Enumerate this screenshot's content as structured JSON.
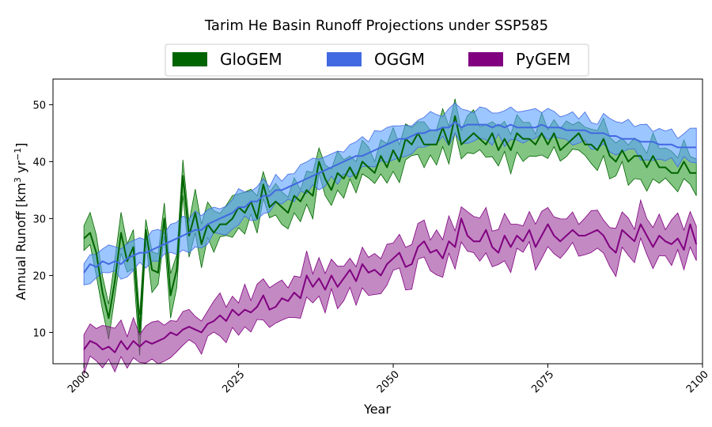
{
  "chart_data": {
    "type": "area",
    "title": "Tarim He Basin Runoff Projections under SSP585",
    "xlabel": "Year",
    "ylabel": {
      "prefix": "Annual Runoff [km",
      "sup1": "3",
      "mid": " yr",
      "sup2": "−1",
      "suffix": "]"
    },
    "xlim": [
      1995,
      2100
    ],
    "ylim": [
      4.5,
      54.5
    ],
    "xticks": [
      2000,
      2025,
      2050,
      2075,
      2100
    ],
    "yticks": [
      10,
      20,
      30,
      40,
      50
    ],
    "legend_placement": "top-center, above plot",
    "series": [
      {
        "name": "GloGEM",
        "color": "#006400",
        "band_color": "#2e9e2e",
        "band_alpha": 0.6,
        "mean_points": [
          [
            2000,
            26.5
          ],
          [
            2001,
            27.5
          ],
          [
            2002,
            24
          ],
          [
            2003,
            17
          ],
          [
            2004,
            12.5
          ],
          [
            2005,
            19
          ],
          [
            2006,
            27.5
          ],
          [
            2007,
            22.5
          ],
          [
            2008,
            25
          ],
          [
            2009,
            10
          ],
          [
            2010,
            28
          ],
          [
            2011,
            21
          ],
          [
            2012,
            20.5
          ],
          [
            2013,
            30
          ],
          [
            2014,
            16.5
          ],
          [
            2015,
            21
          ],
          [
            2016,
            37.5
          ],
          [
            2017,
            27
          ],
          [
            2018,
            31
          ],
          [
            2019,
            25.5
          ],
          [
            2020,
            29
          ],
          [
            2021,
            27.5
          ],
          [
            2022,
            29
          ],
          [
            2023,
            29
          ],
          [
            2024,
            30
          ],
          [
            2025,
            32
          ],
          [
            2026,
            31
          ],
          [
            2027,
            33
          ],
          [
            2028,
            30
          ],
          [
            2029,
            36
          ],
          [
            2030,
            32
          ],
          [
            2031,
            33
          ],
          [
            2032,
            32
          ],
          [
            2033,
            31
          ],
          [
            2034,
            34
          ],
          [
            2035,
            33
          ],
          [
            2036,
            35
          ],
          [
            2037,
            34
          ],
          [
            2038,
            40
          ],
          [
            2039,
            37
          ],
          [
            2040,
            35
          ],
          [
            2041,
            38
          ],
          [
            2042,
            37
          ],
          [
            2043,
            39
          ],
          [
            2044,
            37
          ],
          [
            2045,
            40
          ],
          [
            2046,
            39
          ],
          [
            2047,
            38
          ],
          [
            2048,
            41
          ],
          [
            2049,
            39
          ],
          [
            2050,
            42
          ],
          [
            2051,
            40
          ],
          [
            2052,
            44
          ],
          [
            2053,
            43
          ],
          [
            2054,
            45
          ],
          [
            2055,
            43
          ],
          [
            2056,
            43
          ],
          [
            2057,
            43
          ],
          [
            2058,
            46
          ],
          [
            2059,
            43
          ],
          [
            2060,
            48
          ],
          [
            2061,
            43
          ],
          [
            2062,
            44
          ],
          [
            2063,
            45
          ],
          [
            2064,
            44
          ],
          [
            2065,
            43
          ],
          [
            2066,
            45
          ],
          [
            2067,
            42
          ],
          [
            2068,
            44
          ],
          [
            2069,
            42
          ],
          [
            2070,
            45
          ],
          [
            2071,
            44
          ],
          [
            2072,
            44
          ],
          [
            2073,
            43
          ],
          [
            2074,
            45
          ],
          [
            2075,
            43
          ],
          [
            2076,
            45
          ],
          [
            2077,
            42
          ],
          [
            2078,
            43
          ],
          [
            2079,
            44
          ],
          [
            2080,
            45
          ],
          [
            2081,
            43
          ],
          [
            2082,
            43
          ],
          [
            2083,
            42
          ],
          [
            2084,
            44
          ],
          [
            2085,
            41
          ],
          [
            2086,
            40
          ],
          [
            2087,
            42
          ],
          [
            2088,
            40
          ],
          [
            2089,
            41
          ],
          [
            2090,
            41
          ],
          [
            2091,
            39
          ],
          [
            2092,
            41
          ],
          [
            2093,
            39
          ],
          [
            2094,
            39
          ],
          [
            2095,
            38
          ],
          [
            2096,
            38
          ],
          [
            2097,
            40
          ],
          [
            2098,
            38
          ],
          [
            2099,
            38
          ]
        ],
        "band_half_width": 3.0
      },
      {
        "name": "OGGM",
        "color": "#4169e1",
        "band_color": "#5aa0ff",
        "band_alpha": 0.6,
        "mean_points": [
          [
            2000,
            20.5
          ],
          [
            2001,
            22
          ],
          [
            2002,
            21.5
          ],
          [
            2003,
            22.5
          ],
          [
            2004,
            22
          ],
          [
            2005,
            22.5
          ],
          [
            2006,
            22
          ],
          [
            2007,
            23
          ],
          [
            2008,
            23.5
          ],
          [
            2009,
            24
          ],
          [
            2010,
            24
          ],
          [
            2011,
            24.5
          ],
          [
            2012,
            25
          ],
          [
            2013,
            25.5
          ],
          [
            2014,
            26
          ],
          [
            2015,
            26.5
          ],
          [
            2016,
            27
          ],
          [
            2017,
            27.5
          ],
          [
            2018,
            28
          ],
          [
            2019,
            28
          ],
          [
            2020,
            29
          ],
          [
            2021,
            29.5
          ],
          [
            2022,
            30
          ],
          [
            2023,
            30.5
          ],
          [
            2024,
            31
          ],
          [
            2025,
            32
          ],
          [
            2026,
            32
          ],
          [
            2027,
            33
          ],
          [
            2028,
            33
          ],
          [
            2029,
            34
          ],
          [
            2030,
            34
          ],
          [
            2031,
            35
          ],
          [
            2032,
            35
          ],
          [
            2033,
            35.5
          ],
          [
            2034,
            36
          ],
          [
            2035,
            36.5
          ],
          [
            2036,
            37
          ],
          [
            2037,
            37.5
          ],
          [
            2038,
            38
          ],
          [
            2039,
            38.5
          ],
          [
            2040,
            39
          ],
          [
            2041,
            39.5
          ],
          [
            2042,
            40
          ],
          [
            2043,
            40.5
          ],
          [
            2044,
            41
          ],
          [
            2045,
            41
          ],
          [
            2046,
            41.5
          ],
          [
            2047,
            42
          ],
          [
            2048,
            42.5
          ],
          [
            2049,
            43
          ],
          [
            2050,
            43.5
          ],
          [
            2051,
            44
          ],
          [
            2052,
            44
          ],
          [
            2053,
            44.5
          ],
          [
            2054,
            45
          ],
          [
            2055,
            45
          ],
          [
            2056,
            45.5
          ],
          [
            2057,
            45.5
          ],
          [
            2058,
            46
          ],
          [
            2059,
            46
          ],
          [
            2060,
            47
          ],
          [
            2061,
            46
          ],
          [
            2062,
            46.5
          ],
          [
            2063,
            46.5
          ],
          [
            2064,
            46.5
          ],
          [
            2065,
            46.5
          ],
          [
            2066,
            46
          ],
          [
            2067,
            46.5
          ],
          [
            2068,
            46
          ],
          [
            2069,
            46.5
          ],
          [
            2070,
            46
          ],
          [
            2071,
            46
          ],
          [
            2072,
            46
          ],
          [
            2073,
            46
          ],
          [
            2074,
            46.5
          ],
          [
            2075,
            46
          ],
          [
            2076,
            46
          ],
          [
            2077,
            46
          ],
          [
            2078,
            45.5
          ],
          [
            2079,
            45.5
          ],
          [
            2080,
            45.5
          ],
          [
            2081,
            45.5
          ],
          [
            2082,
            45
          ],
          [
            2083,
            45
          ],
          [
            2084,
            45
          ],
          [
            2085,
            44.5
          ],
          [
            2086,
            44.5
          ],
          [
            2087,
            44
          ],
          [
            2088,
            44
          ],
          [
            2089,
            44
          ],
          [
            2090,
            43.5
          ],
          [
            2091,
            43.5
          ],
          [
            2092,
            43.5
          ],
          [
            2093,
            43
          ],
          [
            2094,
            43
          ],
          [
            2095,
            43
          ],
          [
            2096,
            42.5
          ],
          [
            2097,
            42.5
          ],
          [
            2098,
            42.5
          ],
          [
            2099,
            42.5
          ]
        ],
        "band_half_width": 2.5
      },
      {
        "name": "PyGEM",
        "color": "#800080",
        "band_color": "#9b3a9b",
        "band_alpha": 0.6,
        "mean_points": [
          [
            2000,
            7
          ],
          [
            2001,
            8.5
          ],
          [
            2002,
            8
          ],
          [
            2003,
            7
          ],
          [
            2004,
            7.5
          ],
          [
            2005,
            6.5
          ],
          [
            2006,
            8.5
          ],
          [
            2007,
            7
          ],
          [
            2008,
            8.5
          ],
          [
            2009,
            7.5
          ],
          [
            2010,
            8.5
          ],
          [
            2011,
            8
          ],
          [
            2012,
            8.5
          ],
          [
            2013,
            9
          ],
          [
            2014,
            10
          ],
          [
            2015,
            9.5
          ],
          [
            2016,
            10.5
          ],
          [
            2017,
            11
          ],
          [
            2018,
            10.5
          ],
          [
            2019,
            10
          ],
          [
            2020,
            11.5
          ],
          [
            2021,
            12
          ],
          [
            2022,
            13
          ],
          [
            2023,
            12
          ],
          [
            2024,
            14
          ],
          [
            2025,
            13
          ],
          [
            2026,
            14
          ],
          [
            2027,
            13.5
          ],
          [
            2028,
            14.5
          ],
          [
            2029,
            16.5
          ],
          [
            2030,
            14
          ],
          [
            2031,
            14.5
          ],
          [
            2032,
            16
          ],
          [
            2033,
            15.5
          ],
          [
            2034,
            17
          ],
          [
            2035,
            16
          ],
          [
            2036,
            20
          ],
          [
            2037,
            18
          ],
          [
            2038,
            19.5
          ],
          [
            2039,
            17.5
          ],
          [
            2040,
            20
          ],
          [
            2041,
            18
          ],
          [
            2042,
            19.5
          ],
          [
            2043,
            21
          ],
          [
            2044,
            19
          ],
          [
            2045,
            22
          ],
          [
            2046,
            20.5
          ],
          [
            2047,
            21
          ],
          [
            2048,
            20
          ],
          [
            2049,
            22
          ],
          [
            2050,
            23
          ],
          [
            2051,
            24
          ],
          [
            2052,
            21.5
          ],
          [
            2053,
            22
          ],
          [
            2054,
            25
          ],
          [
            2055,
            26
          ],
          [
            2056,
            24
          ],
          [
            2057,
            24.5
          ],
          [
            2058,
            23
          ],
          [
            2059,
            26
          ],
          [
            2060,
            25
          ],
          [
            2061,
            30
          ],
          [
            2062,
            27
          ],
          [
            2063,
            26
          ],
          [
            2064,
            26
          ],
          [
            2065,
            28
          ],
          [
            2066,
            25
          ],
          [
            2067,
            24
          ],
          [
            2068,
            27
          ],
          [
            2069,
            25
          ],
          [
            2070,
            27
          ],
          [
            2071,
            26
          ],
          [
            2072,
            28
          ],
          [
            2073,
            25
          ],
          [
            2074,
            27
          ],
          [
            2075,
            29
          ],
          [
            2076,
            27
          ],
          [
            2077,
            26
          ],
          [
            2078,
            27
          ],
          [
            2079,
            28
          ],
          [
            2080,
            27
          ],
          [
            2081,
            27
          ],
          [
            2082,
            27.5
          ],
          [
            2083,
            28
          ],
          [
            2084,
            27
          ],
          [
            2085,
            25
          ],
          [
            2086,
            24
          ],
          [
            2087,
            28
          ],
          [
            2088,
            27
          ],
          [
            2089,
            26
          ],
          [
            2090,
            29
          ],
          [
            2091,
            27
          ],
          [
            2092,
            25
          ],
          [
            2093,
            27
          ],
          [
            2094,
            26
          ],
          [
            2095,
            25.5
          ],
          [
            2096,
            26.5
          ],
          [
            2097,
            24.5
          ],
          [
            2098,
            29
          ],
          [
            2099,
            25.5
          ]
        ],
        "band_half_width": 3.2
      }
    ]
  }
}
